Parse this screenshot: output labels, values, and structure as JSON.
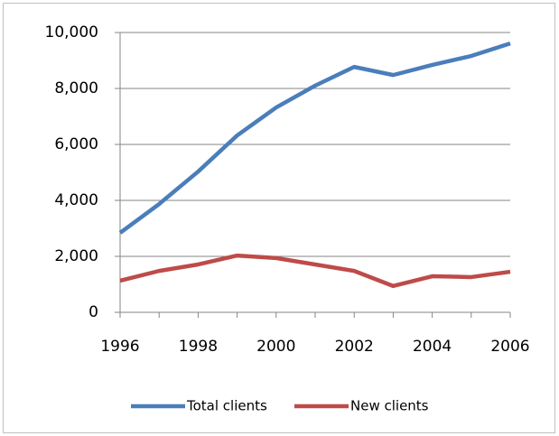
{
  "chart_data": {
    "type": "line",
    "x": [
      1996,
      1997,
      1998,
      1999,
      2000,
      2001,
      2002,
      2003,
      2004,
      2005,
      2006
    ],
    "series": [
      {
        "name": "Total clients",
        "color": "#4a7ebb",
        "values": [
          2840,
          3870,
          5030,
          6320,
          7320,
          8100,
          8770,
          8480,
          8840,
          9160,
          9610
        ]
      },
      {
        "name": "New clients",
        "color": "#be4b48",
        "values": [
          1130,
          1480,
          1710,
          2030,
          1940,
          1710,
          1480,
          940,
          1290,
          1260,
          1450
        ]
      }
    ],
    "xlim": [
      1996,
      2006
    ],
    "xticks": [
      1996,
      1998,
      2000,
      2002,
      2004,
      2006
    ],
    "ylim": [
      0,
      10000
    ],
    "yticks": [
      0,
      {
        "value": 2000,
        "label": "2,000"
      },
      {
        "value": 4000,
        "label": "4,000"
      },
      {
        "value": 6000,
        "label": "6,000"
      },
      {
        "value": 8000,
        "label": "8,000"
      },
      {
        "value": 10000,
        "label": "10,000"
      }
    ],
    "grid": true,
    "legend": "bottom"
  }
}
